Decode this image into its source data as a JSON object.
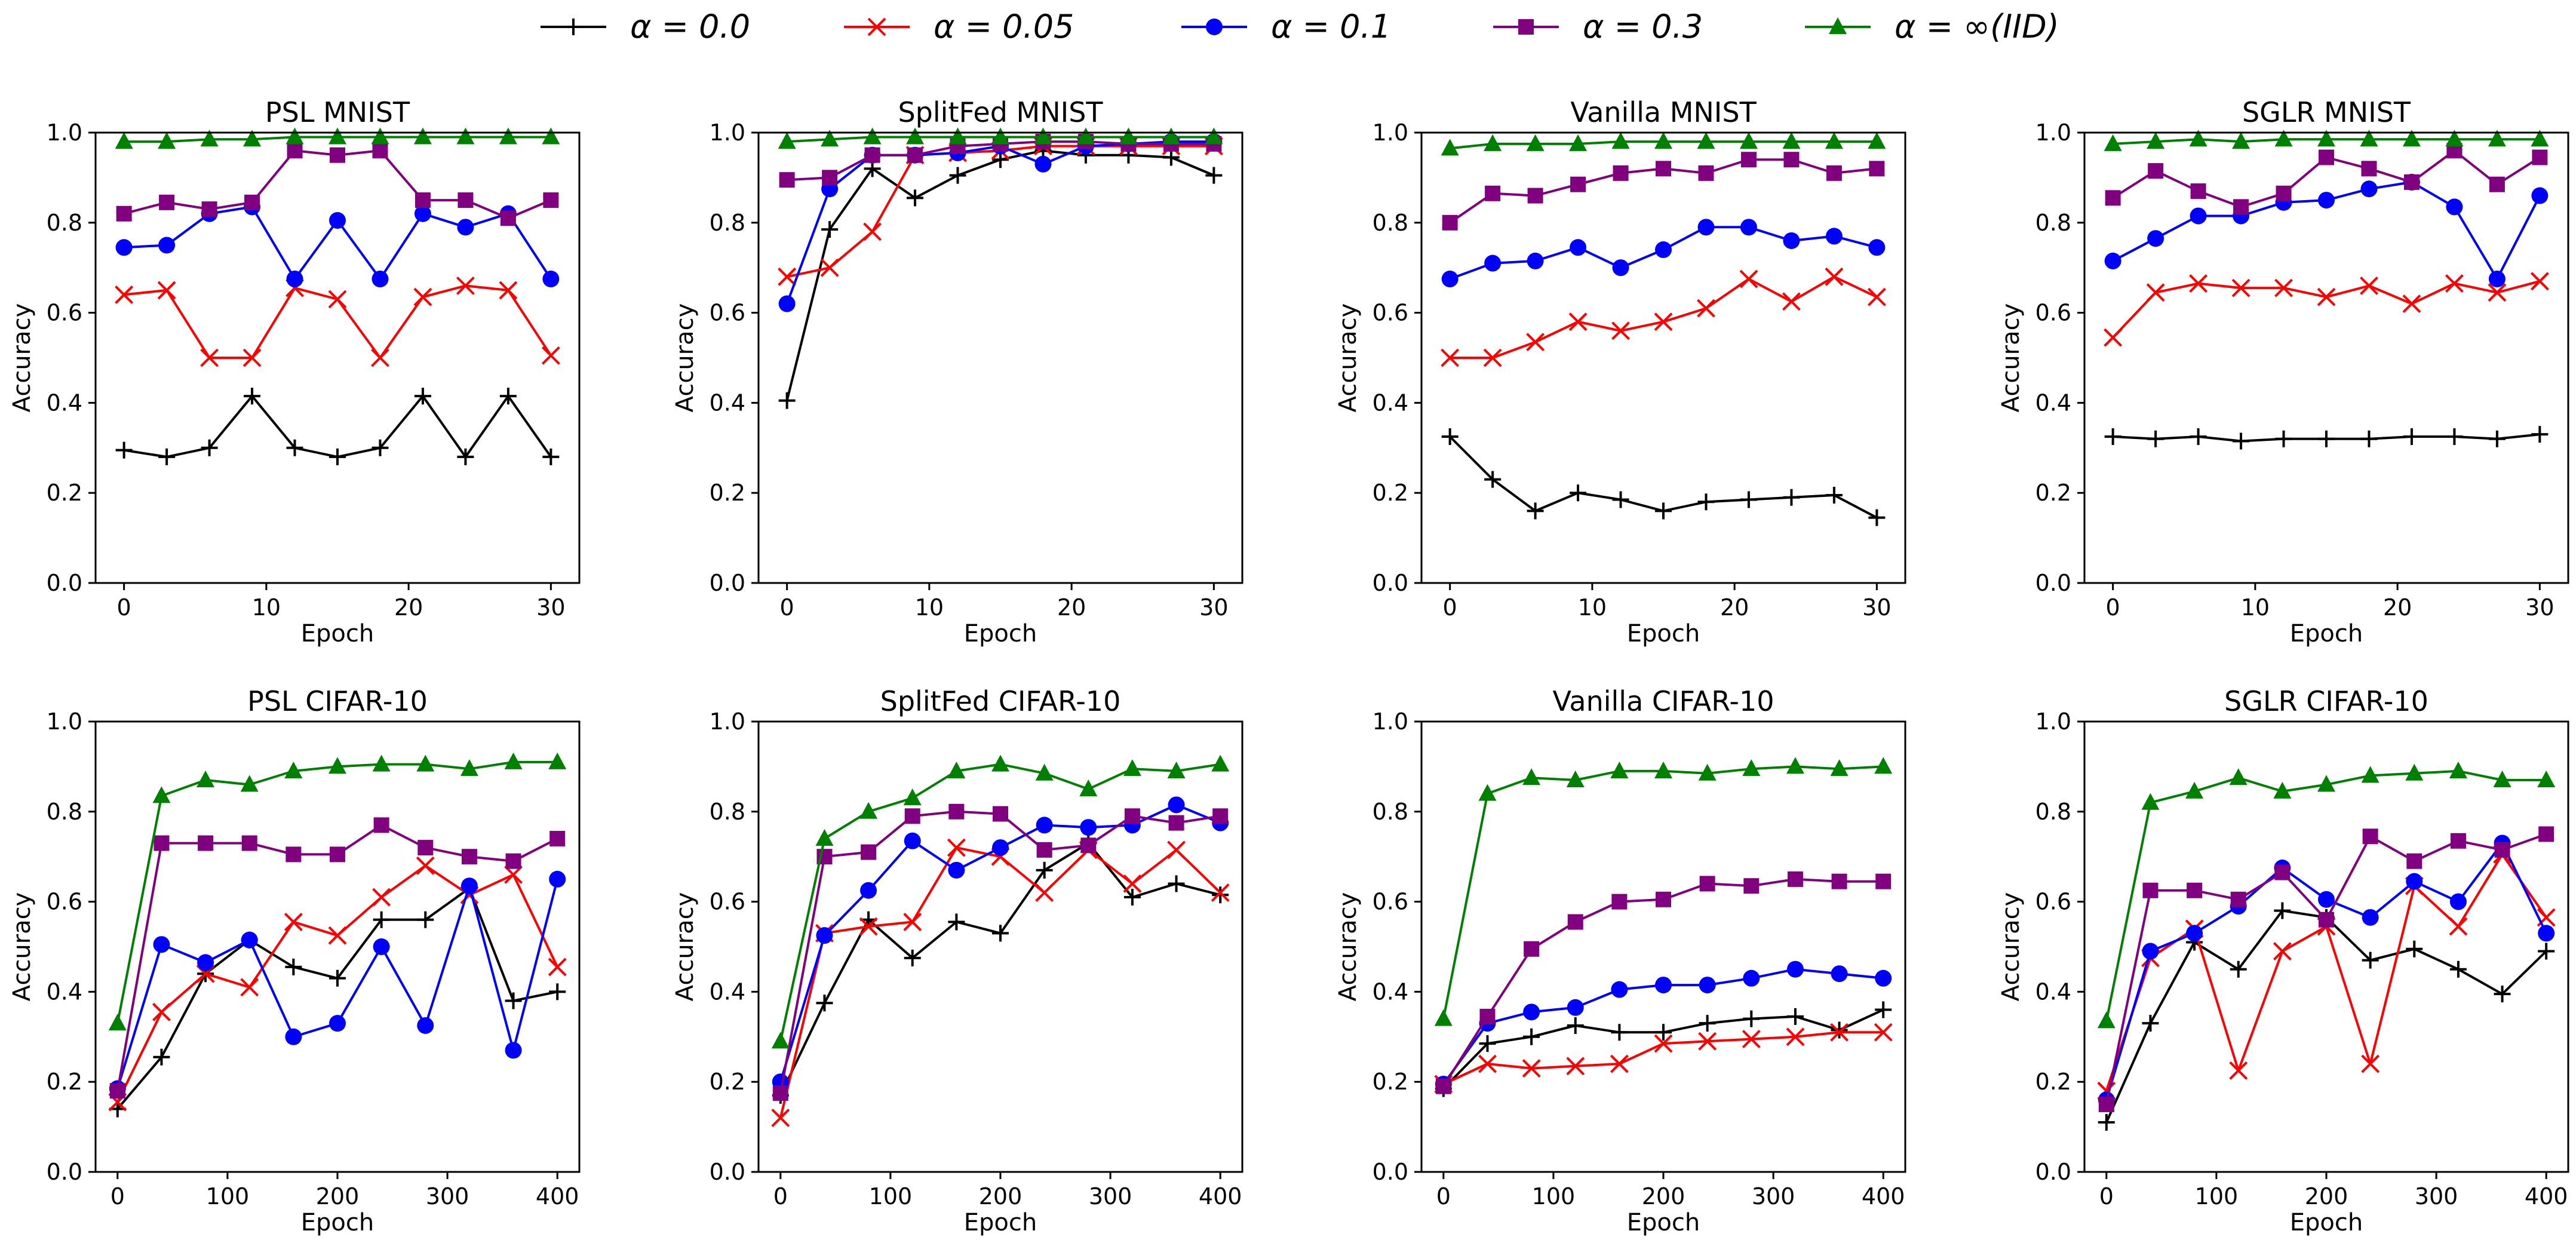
{
  "legend": {
    "placement": "top-center",
    "entries": [
      {
        "label": "α = 0.0",
        "color": "#000000",
        "marker": "plus"
      },
      {
        "label": "α = 0.05",
        "color": "#ff0000",
        "marker": "x"
      },
      {
        "label": "α = 0.1",
        "color": "#0000ff",
        "marker": "circle"
      },
      {
        "label": "α = 0.3",
        "color": "#800080",
        "marker": "square"
      },
      {
        "label": "α = ∞(IID)",
        "color": "#008000",
        "marker": "triangle"
      }
    ]
  },
  "chart_data": [
    {
      "type": "line",
      "title": "PSL MNIST",
      "xlabel": "Epoch",
      "ylabel": "Accuracy",
      "xlim": [
        -2,
        32
      ],
      "ylim": [
        0,
        1
      ],
      "xticks": [
        0,
        10,
        20,
        30
      ],
      "yticks": [
        0.0,
        0.2,
        0.4,
        0.6,
        0.8,
        1.0
      ],
      "grid": false,
      "x": [
        0,
        3,
        6,
        9,
        12,
        15,
        18,
        21,
        24,
        27,
        30
      ],
      "series": [
        {
          "name": "α = 0.0",
          "values": [
            0.295,
            0.28,
            0.3,
            0.415,
            0.3,
            0.28,
            0.3,
            0.415,
            0.28,
            0.415,
            0.28
          ]
        },
        {
          "name": "α = 0.05",
          "values": [
            0.64,
            0.65,
            0.5,
            0.5,
            0.655,
            0.63,
            0.5,
            0.635,
            0.66,
            0.65,
            0.505
          ]
        },
        {
          "name": "α = 0.1",
          "values": [
            0.745,
            0.75,
            0.82,
            0.835,
            0.675,
            0.805,
            0.675,
            0.82,
            0.79,
            0.82,
            0.675
          ]
        },
        {
          "name": "α = 0.3",
          "values": [
            0.82,
            0.845,
            0.83,
            0.845,
            0.96,
            0.95,
            0.96,
            0.85,
            0.85,
            0.81,
            0.85
          ]
        },
        {
          "name": "α = ∞(IID)",
          "values": [
            0.98,
            0.98,
            0.985,
            0.985,
            0.99,
            0.99,
            0.99,
            0.99,
            0.99,
            0.99,
            0.99
          ]
        }
      ]
    },
    {
      "type": "line",
      "title": "SplitFed MNIST",
      "xlabel": "Epoch",
      "ylabel": "Accuracy",
      "xlim": [
        -2,
        32
      ],
      "ylim": [
        0,
        1
      ],
      "xticks": [
        0,
        10,
        20,
        30
      ],
      "yticks": [
        0.0,
        0.2,
        0.4,
        0.6,
        0.8,
        1.0
      ],
      "grid": false,
      "x": [
        0,
        3,
        6,
        9,
        12,
        15,
        18,
        21,
        24,
        27,
        30
      ],
      "series": [
        {
          "name": "α = 0.0",
          "values": [
            0.405,
            0.785,
            0.92,
            0.855,
            0.905,
            0.94,
            0.96,
            0.95,
            0.95,
            0.945,
            0.905
          ]
        },
        {
          "name": "α = 0.05",
          "values": [
            0.68,
            0.7,
            0.78,
            0.95,
            0.955,
            0.96,
            0.97,
            0.97,
            0.97,
            0.97,
            0.97
          ]
        },
        {
          "name": "α = 0.1",
          "values": [
            0.62,
            0.875,
            0.95,
            0.95,
            0.955,
            0.97,
            0.93,
            0.97,
            0.975,
            0.98,
            0.98
          ]
        },
        {
          "name": "α = 0.3",
          "values": [
            0.895,
            0.9,
            0.95,
            0.95,
            0.97,
            0.975,
            0.98,
            0.98,
            0.975,
            0.975,
            0.975
          ]
        },
        {
          "name": "α = ∞(IID)",
          "values": [
            0.98,
            0.985,
            0.99,
            0.99,
            0.99,
            0.99,
            0.99,
            0.99,
            0.99,
            0.99,
            0.99
          ]
        }
      ]
    },
    {
      "type": "line",
      "title": "Vanilla MNIST",
      "xlabel": "Epoch",
      "ylabel": "Accuracy",
      "xlim": [
        -2,
        32
      ],
      "ylim": [
        0,
        1
      ],
      "xticks": [
        0,
        10,
        20,
        30
      ],
      "yticks": [
        0.0,
        0.2,
        0.4,
        0.6,
        0.8,
        1.0
      ],
      "grid": false,
      "x": [
        0,
        3,
        6,
        9,
        12,
        15,
        18,
        21,
        24,
        27,
        30
      ],
      "series": [
        {
          "name": "α = 0.0",
          "values": [
            0.325,
            0.23,
            0.16,
            0.2,
            0.185,
            0.16,
            0.18,
            0.185,
            0.19,
            0.195,
            0.145
          ]
        },
        {
          "name": "α = 0.05",
          "values": [
            0.5,
            0.5,
            0.535,
            0.58,
            0.56,
            0.58,
            0.61,
            0.675,
            0.625,
            0.68,
            0.635
          ]
        },
        {
          "name": "α = 0.1",
          "values": [
            0.675,
            0.71,
            0.715,
            0.745,
            0.7,
            0.74,
            0.79,
            0.79,
            0.76,
            0.77,
            0.745
          ]
        },
        {
          "name": "α = 0.3",
          "values": [
            0.8,
            0.865,
            0.86,
            0.885,
            0.91,
            0.92,
            0.91,
            0.94,
            0.94,
            0.91,
            0.92
          ]
        },
        {
          "name": "α = ∞(IID)",
          "values": [
            0.965,
            0.975,
            0.975,
            0.975,
            0.98,
            0.98,
            0.98,
            0.98,
            0.98,
            0.98,
            0.98
          ]
        }
      ]
    },
    {
      "type": "line",
      "title": "SGLR MNIST",
      "xlabel": "Epoch",
      "ylabel": "Accuracy",
      "xlim": [
        -2,
        32
      ],
      "ylim": [
        0,
        1
      ],
      "xticks": [
        0,
        10,
        20,
        30
      ],
      "yticks": [
        0.0,
        0.2,
        0.4,
        0.6,
        0.8,
        1.0
      ],
      "grid": false,
      "x": [
        0,
        3,
        6,
        9,
        12,
        15,
        18,
        21,
        24,
        27,
        30
      ],
      "series": [
        {
          "name": "α = 0.0",
          "values": [
            0.325,
            0.32,
            0.325,
            0.315,
            0.32,
            0.32,
            0.32,
            0.325,
            0.325,
            0.32,
            0.33
          ]
        },
        {
          "name": "α = 0.05",
          "values": [
            0.545,
            0.645,
            0.665,
            0.655,
            0.655,
            0.635,
            0.66,
            0.62,
            0.665,
            0.645,
            0.67
          ]
        },
        {
          "name": "α = 0.1",
          "values": [
            0.715,
            0.765,
            0.815,
            0.815,
            0.845,
            0.85,
            0.875,
            0.89,
            0.835,
            0.675,
            0.86
          ]
        },
        {
          "name": "α = 0.3",
          "values": [
            0.855,
            0.915,
            0.87,
            0.835,
            0.865,
            0.945,
            0.92,
            0.89,
            0.96,
            0.885,
            0.945
          ]
        },
        {
          "name": "α = ∞(IID)",
          "values": [
            0.975,
            0.98,
            0.985,
            0.98,
            0.985,
            0.985,
            0.985,
            0.985,
            0.985,
            0.985,
            0.985
          ]
        }
      ]
    },
    {
      "type": "line",
      "title": "PSL CIFAR-10",
      "xlabel": "Epoch",
      "ylabel": "Accuracy",
      "xlim": [
        -20,
        420
      ],
      "ylim": [
        0,
        1
      ],
      "xticks": [
        0,
        100,
        200,
        300,
        400
      ],
      "yticks": [
        0.0,
        0.2,
        0.4,
        0.6,
        0.8,
        1.0
      ],
      "grid": false,
      "x": [
        0,
        40,
        80,
        120,
        160,
        200,
        240,
        280,
        320,
        360,
        400
      ],
      "series": [
        {
          "name": "α = 0.0",
          "values": [
            0.14,
            0.255,
            0.44,
            0.515,
            0.455,
            0.43,
            0.56,
            0.56,
            0.63,
            0.38,
            0.4
          ]
        },
        {
          "name": "α = 0.05",
          "values": [
            0.155,
            0.355,
            0.44,
            0.41,
            0.555,
            0.525,
            0.61,
            0.68,
            0.615,
            0.66,
            0.455
          ]
        },
        {
          "name": "α = 0.1",
          "values": [
            0.185,
            0.505,
            0.465,
            0.515,
            0.3,
            0.33,
            0.5,
            0.325,
            0.635,
            0.27,
            0.65
          ]
        },
        {
          "name": "α = 0.3",
          "values": [
            0.18,
            0.73,
            0.73,
            0.73,
            0.705,
            0.705,
            0.77,
            0.72,
            0.7,
            0.69,
            0.74
          ]
        },
        {
          "name": "α = ∞(IID)",
          "values": [
            0.33,
            0.835,
            0.87,
            0.86,
            0.89,
            0.9,
            0.905,
            0.905,
            0.895,
            0.91,
            0.91
          ]
        }
      ]
    },
    {
      "type": "line",
      "title": "SplitFed CIFAR-10",
      "xlabel": "Epoch",
      "ylabel": "Accuracy",
      "xlim": [
        -20,
        420
      ],
      "ylim": [
        0,
        1
      ],
      "xticks": [
        0,
        100,
        200,
        300,
        400
      ],
      "yticks": [
        0.0,
        0.2,
        0.4,
        0.6,
        0.8,
        1.0
      ],
      "grid": false,
      "x": [
        0,
        40,
        80,
        120,
        160,
        200,
        240,
        280,
        320,
        360,
        400
      ],
      "series": [
        {
          "name": "α = 0.0",
          "values": [
            0.17,
            0.375,
            0.56,
            0.475,
            0.555,
            0.53,
            0.67,
            0.73,
            0.61,
            0.64,
            0.615
          ]
        },
        {
          "name": "α = 0.05",
          "values": [
            0.12,
            0.53,
            0.545,
            0.555,
            0.72,
            0.7,
            0.62,
            0.715,
            0.64,
            0.715,
            0.62
          ]
        },
        {
          "name": "α = 0.1",
          "values": [
            0.2,
            0.525,
            0.625,
            0.735,
            0.67,
            0.72,
            0.77,
            0.765,
            0.77,
            0.815,
            0.775
          ]
        },
        {
          "name": "α = 0.3",
          "values": [
            0.175,
            0.7,
            0.71,
            0.79,
            0.8,
            0.795,
            0.715,
            0.725,
            0.79,
            0.775,
            0.79
          ]
        },
        {
          "name": "α = ∞(IID)",
          "values": [
            0.29,
            0.74,
            0.8,
            0.83,
            0.89,
            0.905,
            0.885,
            0.85,
            0.895,
            0.89,
            0.905
          ]
        }
      ]
    },
    {
      "type": "line",
      "title": "Vanilla CIFAR-10",
      "xlabel": "Epoch",
      "ylabel": "Accuracy",
      "xlim": [
        -20,
        420
      ],
      "ylim": [
        0,
        1
      ],
      "xticks": [
        0,
        100,
        200,
        300,
        400
      ],
      "yticks": [
        0.0,
        0.2,
        0.4,
        0.6,
        0.8,
        1.0
      ],
      "grid": false,
      "x": [
        0,
        40,
        80,
        120,
        160,
        200,
        240,
        280,
        320,
        360,
        400
      ],
      "series": [
        {
          "name": "α = 0.0",
          "values": [
            0.185,
            0.285,
            0.3,
            0.325,
            0.31,
            0.31,
            0.33,
            0.34,
            0.345,
            0.315,
            0.36
          ]
        },
        {
          "name": "α = 0.05",
          "values": [
            0.195,
            0.24,
            0.23,
            0.235,
            0.24,
            0.285,
            0.29,
            0.295,
            0.3,
            0.31,
            0.31
          ]
        },
        {
          "name": "α = 0.1",
          "values": [
            0.195,
            0.33,
            0.355,
            0.365,
            0.405,
            0.415,
            0.415,
            0.43,
            0.45,
            0.44,
            0.43
          ]
        },
        {
          "name": "α = 0.3",
          "values": [
            0.19,
            0.345,
            0.495,
            0.555,
            0.6,
            0.605,
            0.64,
            0.635,
            0.65,
            0.645,
            0.645
          ]
        },
        {
          "name": "α = ∞(IID)",
          "values": [
            0.34,
            0.84,
            0.875,
            0.87,
            0.89,
            0.89,
            0.885,
            0.895,
            0.9,
            0.895,
            0.9
          ]
        }
      ]
    },
    {
      "type": "line",
      "title": "SGLR CIFAR-10",
      "xlabel": "Epoch",
      "ylabel": "Accuracy",
      "xlim": [
        -20,
        420
      ],
      "ylim": [
        0,
        1
      ],
      "xticks": [
        0,
        100,
        200,
        300,
        400
      ],
      "yticks": [
        0.0,
        0.2,
        0.4,
        0.6,
        0.8,
        1.0
      ],
      "grid": false,
      "x": [
        0,
        40,
        80,
        120,
        160,
        200,
        240,
        280,
        320,
        360,
        400
      ],
      "series": [
        {
          "name": "α = 0.0",
          "values": [
            0.11,
            0.33,
            0.51,
            0.45,
            0.58,
            0.565,
            0.47,
            0.495,
            0.45,
            0.395,
            0.49
          ]
        },
        {
          "name": "α = 0.05",
          "values": [
            0.18,
            0.475,
            0.54,
            0.225,
            0.49,
            0.545,
            0.24,
            0.635,
            0.545,
            0.705,
            0.565
          ]
        },
        {
          "name": "α = 0.1",
          "values": [
            0.16,
            0.49,
            0.53,
            0.59,
            0.675,
            0.605,
            0.565,
            0.645,
            0.6,
            0.73,
            0.53
          ]
        },
        {
          "name": "α = 0.3",
          "values": [
            0.15,
            0.625,
            0.625,
            0.605,
            0.665,
            0.56,
            0.745,
            0.69,
            0.735,
            0.715,
            0.75
          ]
        },
        {
          "name": "α = ∞(IID)",
          "values": [
            0.335,
            0.82,
            0.845,
            0.875,
            0.845,
            0.86,
            0.88,
            0.885,
            0.89,
            0.87,
            0.87
          ]
        }
      ]
    }
  ]
}
